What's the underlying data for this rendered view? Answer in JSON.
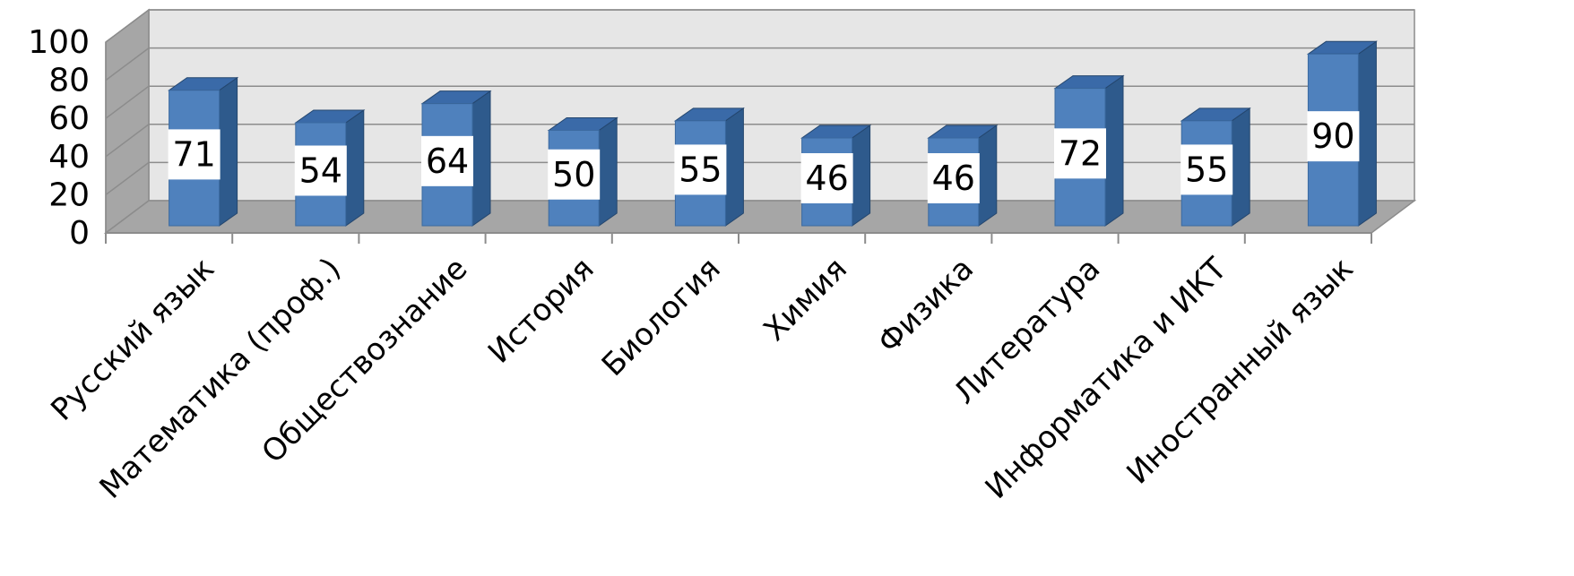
{
  "chart_data": {
    "type": "bar",
    "title": "",
    "xlabel": "",
    "ylabel": "",
    "categories": [
      "Русский язык",
      "Математика (проф.)",
      "Обществознание",
      "История",
      "Биология",
      "Химия",
      "Физика",
      "Литература",
      "Информатика и ИКТ",
      "Иностранный язык"
    ],
    "values": [
      71,
      54,
      64,
      50,
      55,
      46,
      46,
      72,
      55,
      90
    ],
    "value_labels": [
      "71",
      "54",
      "64",
      "50",
      "55",
      "46",
      "46",
      "72",
      "55",
      "90"
    ],
    "ylim": [
      0,
      100
    ],
    "yticks": [
      "0",
      "20",
      "40",
      "60",
      "80",
      "100"
    ],
    "grid": true,
    "legend": "none",
    "style": "3d-column",
    "colors": {
      "bar_front": "#4F81BD",
      "bar_top": "#3A6AA8",
      "bar_side": "#2E5A8C",
      "back_wall": "#E6E6E6",
      "side_wall": "#A6A6A6",
      "floor": "#A6A6A6",
      "gridline": "#8C8C8C",
      "label_box": "#FFFFFF"
    }
  }
}
